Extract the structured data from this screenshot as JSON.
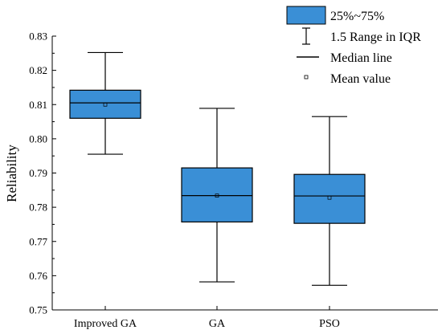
{
  "chart_data": {
    "type": "box",
    "title": "",
    "xlabel": "",
    "ylabel": "Reliability",
    "ylim": [
      0.75,
      0.83
    ],
    "yticks": [
      "0.75",
      "0.76",
      "0.77",
      "0.78",
      "0.79",
      "0.80",
      "0.81",
      "0.82",
      "0.83"
    ],
    "categories": [
      "Improved GA",
      "GA",
      "PSO"
    ],
    "boxes": [
      {
        "category": "Improved GA",
        "whisker_low": 0.7955,
        "q1": 0.806,
        "median": 0.8105,
        "mean": 0.81,
        "q3": 0.8142,
        "whisker_high": 0.8252
      },
      {
        "category": "GA",
        "whisker_low": 0.7582,
        "q1": 0.7757,
        "median": 0.7834,
        "mean": 0.7834,
        "q3": 0.7915,
        "whisker_high": 0.8089
      },
      {
        "category": "PSO",
        "whisker_low": 0.7572,
        "q1": 0.7753,
        "median": 0.7833,
        "mean": 0.7828,
        "q3": 0.7896,
        "whisker_high": 0.8065
      }
    ],
    "legend": {
      "position": "top-right",
      "entries": [
        {
          "key": "box",
          "label": "25%~75%"
        },
        {
          "key": "whisker",
          "label": "1.5 Range in IQR"
        },
        {
          "key": "median",
          "label": "Median line"
        },
        {
          "key": "mean",
          "label": "Mean value"
        }
      ]
    },
    "grid": false,
    "colors": {
      "box_fill": "#3a8fd6",
      "stroke": "#000000"
    }
  }
}
